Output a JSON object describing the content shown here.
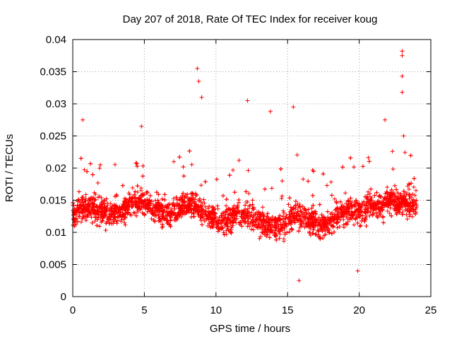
{
  "chart_data": {
    "type": "scatter",
    "title": "Day 207 of 2018, Rate Of TEC Index for receiver koug",
    "xlabel": "GPS time / hours",
    "ylabel": "ROTI / TECUs",
    "xlim": [
      0,
      25
    ],
    "ylim": [
      0,
      0.04
    ],
    "x_ticks": [
      0,
      5,
      10,
      15,
      20,
      25
    ],
    "x_tick_labels": [
      "0",
      "5",
      "10",
      "15",
      "20",
      "25"
    ],
    "y_ticks": [
      0,
      0.005,
      0.01,
      0.015,
      0.02,
      0.025,
      0.03,
      0.035,
      0.04
    ],
    "y_tick_labels": [
      "0",
      "0.005",
      "0.01",
      "0.015",
      "0.02",
      "0.025",
      "0.03",
      "0.035",
      "0.04"
    ],
    "grid": true,
    "marker": "+",
    "color": "#ff0000",
    "series": [
      {
        "name": "ROTI",
        "description": "Dense scatter of ROTI samples across the full day; bulk between ~0.005 and ~0.022 TECU/s",
        "x_range": [
          0,
          24
        ],
        "bulk_range": [
          0.005,
          0.022
        ],
        "notable_points": [
          {
            "x": 0.7,
            "y": 0.0275
          },
          {
            "x": 4.8,
            "y": 0.0265
          },
          {
            "x": 8.7,
            "y": 0.0355
          },
          {
            "x": 8.8,
            "y": 0.0335
          },
          {
            "x": 9.0,
            "y": 0.031
          },
          {
            "x": 12.2,
            "y": 0.0305
          },
          {
            "x": 13.8,
            "y": 0.0288
          },
          {
            "x": 15.4,
            "y": 0.0295
          },
          {
            "x": 15.8,
            "y": 0.0025
          },
          {
            "x": 21.8,
            "y": 0.0275
          },
          {
            "x": 23.0,
            "y": 0.0382
          },
          {
            "x": 23.0,
            "y": 0.0375
          },
          {
            "x": 23.0,
            "y": 0.0343
          },
          {
            "x": 23.0,
            "y": 0.0318
          },
          {
            "x": 23.1,
            "y": 0.025
          },
          {
            "x": 19.9,
            "y": 0.004
          }
        ]
      }
    ]
  }
}
